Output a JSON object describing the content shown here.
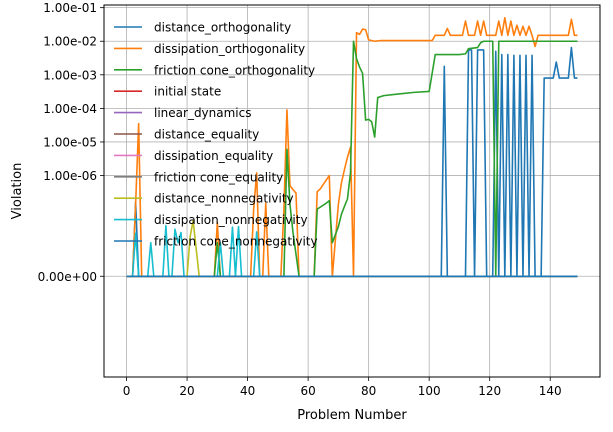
{
  "chart_data": {
    "type": "line",
    "title": "",
    "xlabel": "Problem Number",
    "ylabel": "Violation",
    "x_ticks": [
      0,
      20,
      40,
      60,
      80,
      100,
      120,
      140
    ],
    "y_ticks": [
      {
        "value": 0,
        "label": "0.00e+00"
      },
      {
        "value": 1e-06,
        "label": "1.00e-06"
      },
      {
        "value": 1e-05,
        "label": "1.00e-05"
      },
      {
        "value": 0.0001,
        "label": "1.00e-04"
      },
      {
        "value": 0.001,
        "label": "1.00e-03"
      },
      {
        "value": 0.01,
        "label": "1.00e-02"
      },
      {
        "value": 0.1,
        "label": "1.00e-01"
      }
    ],
    "xlim": [
      -7.45,
      156.45
    ],
    "ylim": [
      -3e-08,
      0.12
    ],
    "y_scale": "symlog",
    "grid": true,
    "legend_position": "upper-left",
    "series": [
      {
        "name": "distance_orthogonality",
        "color": "#1f77b4",
        "points": [
          [
            0,
            0
          ],
          [
            2,
            0
          ],
          [
            3,
            1.6e-07
          ],
          [
            4,
            0
          ],
          [
            104,
            0
          ],
          [
            105,
            0.0018
          ],
          [
            106,
            0
          ],
          [
            112,
            0
          ],
          [
            113,
            0.0055
          ],
          [
            114,
            0.0055
          ],
          [
            115,
            0
          ],
          [
            116,
            0.0055
          ],
          [
            117,
            0.0055
          ],
          [
            118,
            0.0055
          ],
          [
            119,
            0
          ],
          [
            121,
            0
          ],
          [
            122,
            0.005
          ],
          [
            123,
            0
          ],
          [
            124,
            0.004
          ],
          [
            125,
            0
          ],
          [
            126,
            0.004
          ],
          [
            127,
            0
          ],
          [
            128,
            0.0038
          ],
          [
            129,
            0
          ],
          [
            130,
            0.0038
          ],
          [
            131,
            0
          ],
          [
            132,
            0.0038
          ],
          [
            133,
            0
          ],
          [
            134,
            0.0038
          ],
          [
            135,
            0
          ],
          [
            137,
            0
          ],
          [
            138,
            0.0008
          ],
          [
            141,
            0.0008
          ],
          [
            142,
            0.0024
          ],
          [
            143,
            0.0008
          ],
          [
            146,
            0.0008
          ],
          [
            147,
            0.0065
          ],
          [
            148,
            0.0008
          ],
          [
            149,
            0.0008
          ]
        ]
      },
      {
        "name": "dissipation_orthogonality",
        "color": "#ff7f0e",
        "points": [
          [
            0,
            0
          ],
          [
            2,
            0
          ],
          [
            3,
            1.4e-07
          ],
          [
            4,
            3.5e-05
          ],
          [
            5,
            0
          ],
          [
            29,
            0
          ],
          [
            30,
            4e-08
          ],
          [
            31,
            0
          ],
          [
            41,
            0
          ],
          [
            42,
            1e-07
          ],
          [
            43,
            1.2e-06
          ],
          [
            44,
            0
          ],
          [
            45,
            0
          ],
          [
            46,
            1.5e-07
          ],
          [
            47,
            0
          ],
          [
            51,
            0
          ],
          [
            52,
            1e-07
          ],
          [
            53,
            9e-05
          ],
          [
            54,
            5e-07
          ],
          [
            55,
            3.8e-07
          ],
          [
            56,
            3e-07
          ],
          [
            57,
            0
          ],
          [
            62,
            0
          ],
          [
            63,
            3.3e-07
          ],
          [
            64,
            4e-07
          ],
          [
            67,
            1e-06
          ],
          [
            68,
            0
          ],
          [
            70,
            1.4e-07
          ],
          [
            71,
            6e-07
          ],
          [
            72,
            1.5e-06
          ],
          [
            73,
            3.5e-06
          ],
          [
            74,
            7e-06
          ],
          [
            75,
            0
          ],
          [
            76,
            0.018
          ],
          [
            77,
            0.016
          ],
          [
            78,
            0.023
          ],
          [
            79,
            0.022
          ],
          [
            80,
            0.011
          ],
          [
            82,
            0.01
          ],
          [
            84,
            0.0105
          ],
          [
            100,
            0.0105
          ],
          [
            101,
            0.0105
          ],
          [
            102,
            0.015
          ],
          [
            105,
            0.015
          ],
          [
            106,
            0.024
          ],
          [
            107,
            0.015
          ],
          [
            111,
            0.015
          ],
          [
            112,
            0.04
          ],
          [
            113,
            0.015
          ],
          [
            115,
            0.015
          ],
          [
            116,
            0.04
          ],
          [
            117,
            0.015
          ],
          [
            118,
            0.04
          ],
          [
            119,
            0.015
          ],
          [
            121,
            0.015
          ],
          [
            122,
            0.015
          ],
          [
            123,
            0.04
          ],
          [
            124,
            0.015
          ],
          [
            125,
            0.05
          ],
          [
            126,
            0.015
          ],
          [
            127,
            0.04
          ],
          [
            128,
            0.015
          ],
          [
            129,
            0.03
          ],
          [
            130,
            0.015
          ],
          [
            131,
            0.028
          ],
          [
            132,
            0.015
          ],
          [
            133,
            0.028
          ],
          [
            134,
            0.015
          ],
          [
            135,
            0.007
          ],
          [
            136,
            0.015
          ],
          [
            146,
            0.015
          ],
          [
            147,
            0.045
          ],
          [
            148,
            0.015
          ],
          [
            149,
            0.015
          ]
        ]
      },
      {
        "name": "friction cone_orthogonality",
        "color": "#2ca02c",
        "points": [
          [
            0,
            0
          ],
          [
            29,
            0
          ],
          [
            30,
            1e-08
          ],
          [
            31,
            0
          ],
          [
            52,
            0
          ],
          [
            53,
            6e-06
          ],
          [
            54,
            1.4e-07
          ],
          [
            55,
            2e-08
          ],
          [
            57,
            0
          ],
          [
            62,
            0
          ],
          [
            63,
            1e-07
          ],
          [
            66,
            1.5e-07
          ],
          [
            67,
            1.8e-07
          ],
          [
            68,
            1e-08
          ],
          [
            70,
            3e-08
          ],
          [
            71,
            7e-08
          ],
          [
            72,
            1.2e-07
          ],
          [
            73,
            2e-07
          ],
          [
            74,
            1.2e-06
          ],
          [
            75,
            0.01
          ],
          [
            76,
            0.003
          ],
          [
            77,
            0.0017
          ],
          [
            78,
            0.0011
          ],
          [
            79,
            4.5e-05
          ],
          [
            80,
            4.7e-05
          ],
          [
            81,
            4e-05
          ],
          [
            82,
            1.4e-05
          ],
          [
            83,
            0.00021
          ],
          [
            85,
            0.00024
          ],
          [
            90,
            0.00027
          ],
          [
            95,
            0.0003
          ],
          [
            100,
            0.00032
          ],
          [
            102,
            0.004
          ],
          [
            110,
            0.004
          ],
          [
            112,
            0.0042
          ],
          [
            113,
            0.006
          ],
          [
            116,
            0.0065
          ],
          [
            117,
            0.009
          ],
          [
            118,
            0.01
          ],
          [
            120,
            0.01
          ],
          [
            121,
            0.01
          ],
          [
            122,
            0
          ],
          [
            123,
            0.01
          ],
          [
            149,
            0.01
          ]
        ]
      },
      {
        "name": "initial state",
        "color": "#d62728",
        "points": [
          [
            0,
            0
          ],
          [
            149,
            0
          ]
        ]
      },
      {
        "name": "linear_dynamics",
        "color": "#9467bd",
        "points": [
          [
            0,
            0
          ],
          [
            149,
            0
          ]
        ]
      },
      {
        "name": "distance_equality",
        "color": "#8c564b",
        "points": [
          [
            0,
            0
          ],
          [
            149,
            0
          ]
        ]
      },
      {
        "name": "dissipation_equality",
        "color": "#e377c2",
        "points": [
          [
            0,
            0
          ],
          [
            149,
            0
          ]
        ]
      },
      {
        "name": "friction cone_equality",
        "color": "#7f7f7f",
        "points": [
          [
            0,
            0
          ],
          [
            149,
            0
          ]
        ]
      },
      {
        "name": "distance_nonnegativity",
        "color": "#bcbd22",
        "points": [
          [
            0,
            0
          ],
          [
            20,
            0
          ],
          [
            21,
            1.5e-08
          ],
          [
            22,
            4.5e-08
          ],
          [
            24,
            0
          ],
          [
            149,
            0
          ]
        ]
      },
      {
        "name": "dissipation_nonnegativity",
        "color": "#17becf",
        "points": [
          [
            0,
            0
          ],
          [
            2,
            0
          ],
          [
            3,
            1.9e-08
          ],
          [
            4,
            0
          ],
          [
            7,
            0
          ],
          [
            8,
            1e-08
          ],
          [
            9,
            0
          ],
          [
            12,
            0
          ],
          [
            13,
            3.2e-08
          ],
          [
            14,
            0
          ],
          [
            15,
            0
          ],
          [
            16,
            2.5e-08
          ],
          [
            17,
            1e-08
          ],
          [
            18,
            2e-08
          ],
          [
            19,
            0
          ],
          [
            30,
            0
          ],
          [
            31,
            1e-08
          ],
          [
            32,
            0
          ],
          [
            34,
            0
          ],
          [
            35,
            2.9e-08
          ],
          [
            36,
            0
          ],
          [
            37,
            3e-08
          ],
          [
            38,
            0
          ],
          [
            42,
            0
          ],
          [
            43,
            2.1e-08
          ],
          [
            44,
            0
          ],
          [
            149,
            0
          ]
        ]
      },
      {
        "name": "friction cone_nonnegativity",
        "color": "#1f77b4",
        "points": [
          [
            0,
            0
          ],
          [
            149,
            0
          ]
        ]
      }
    ]
  }
}
